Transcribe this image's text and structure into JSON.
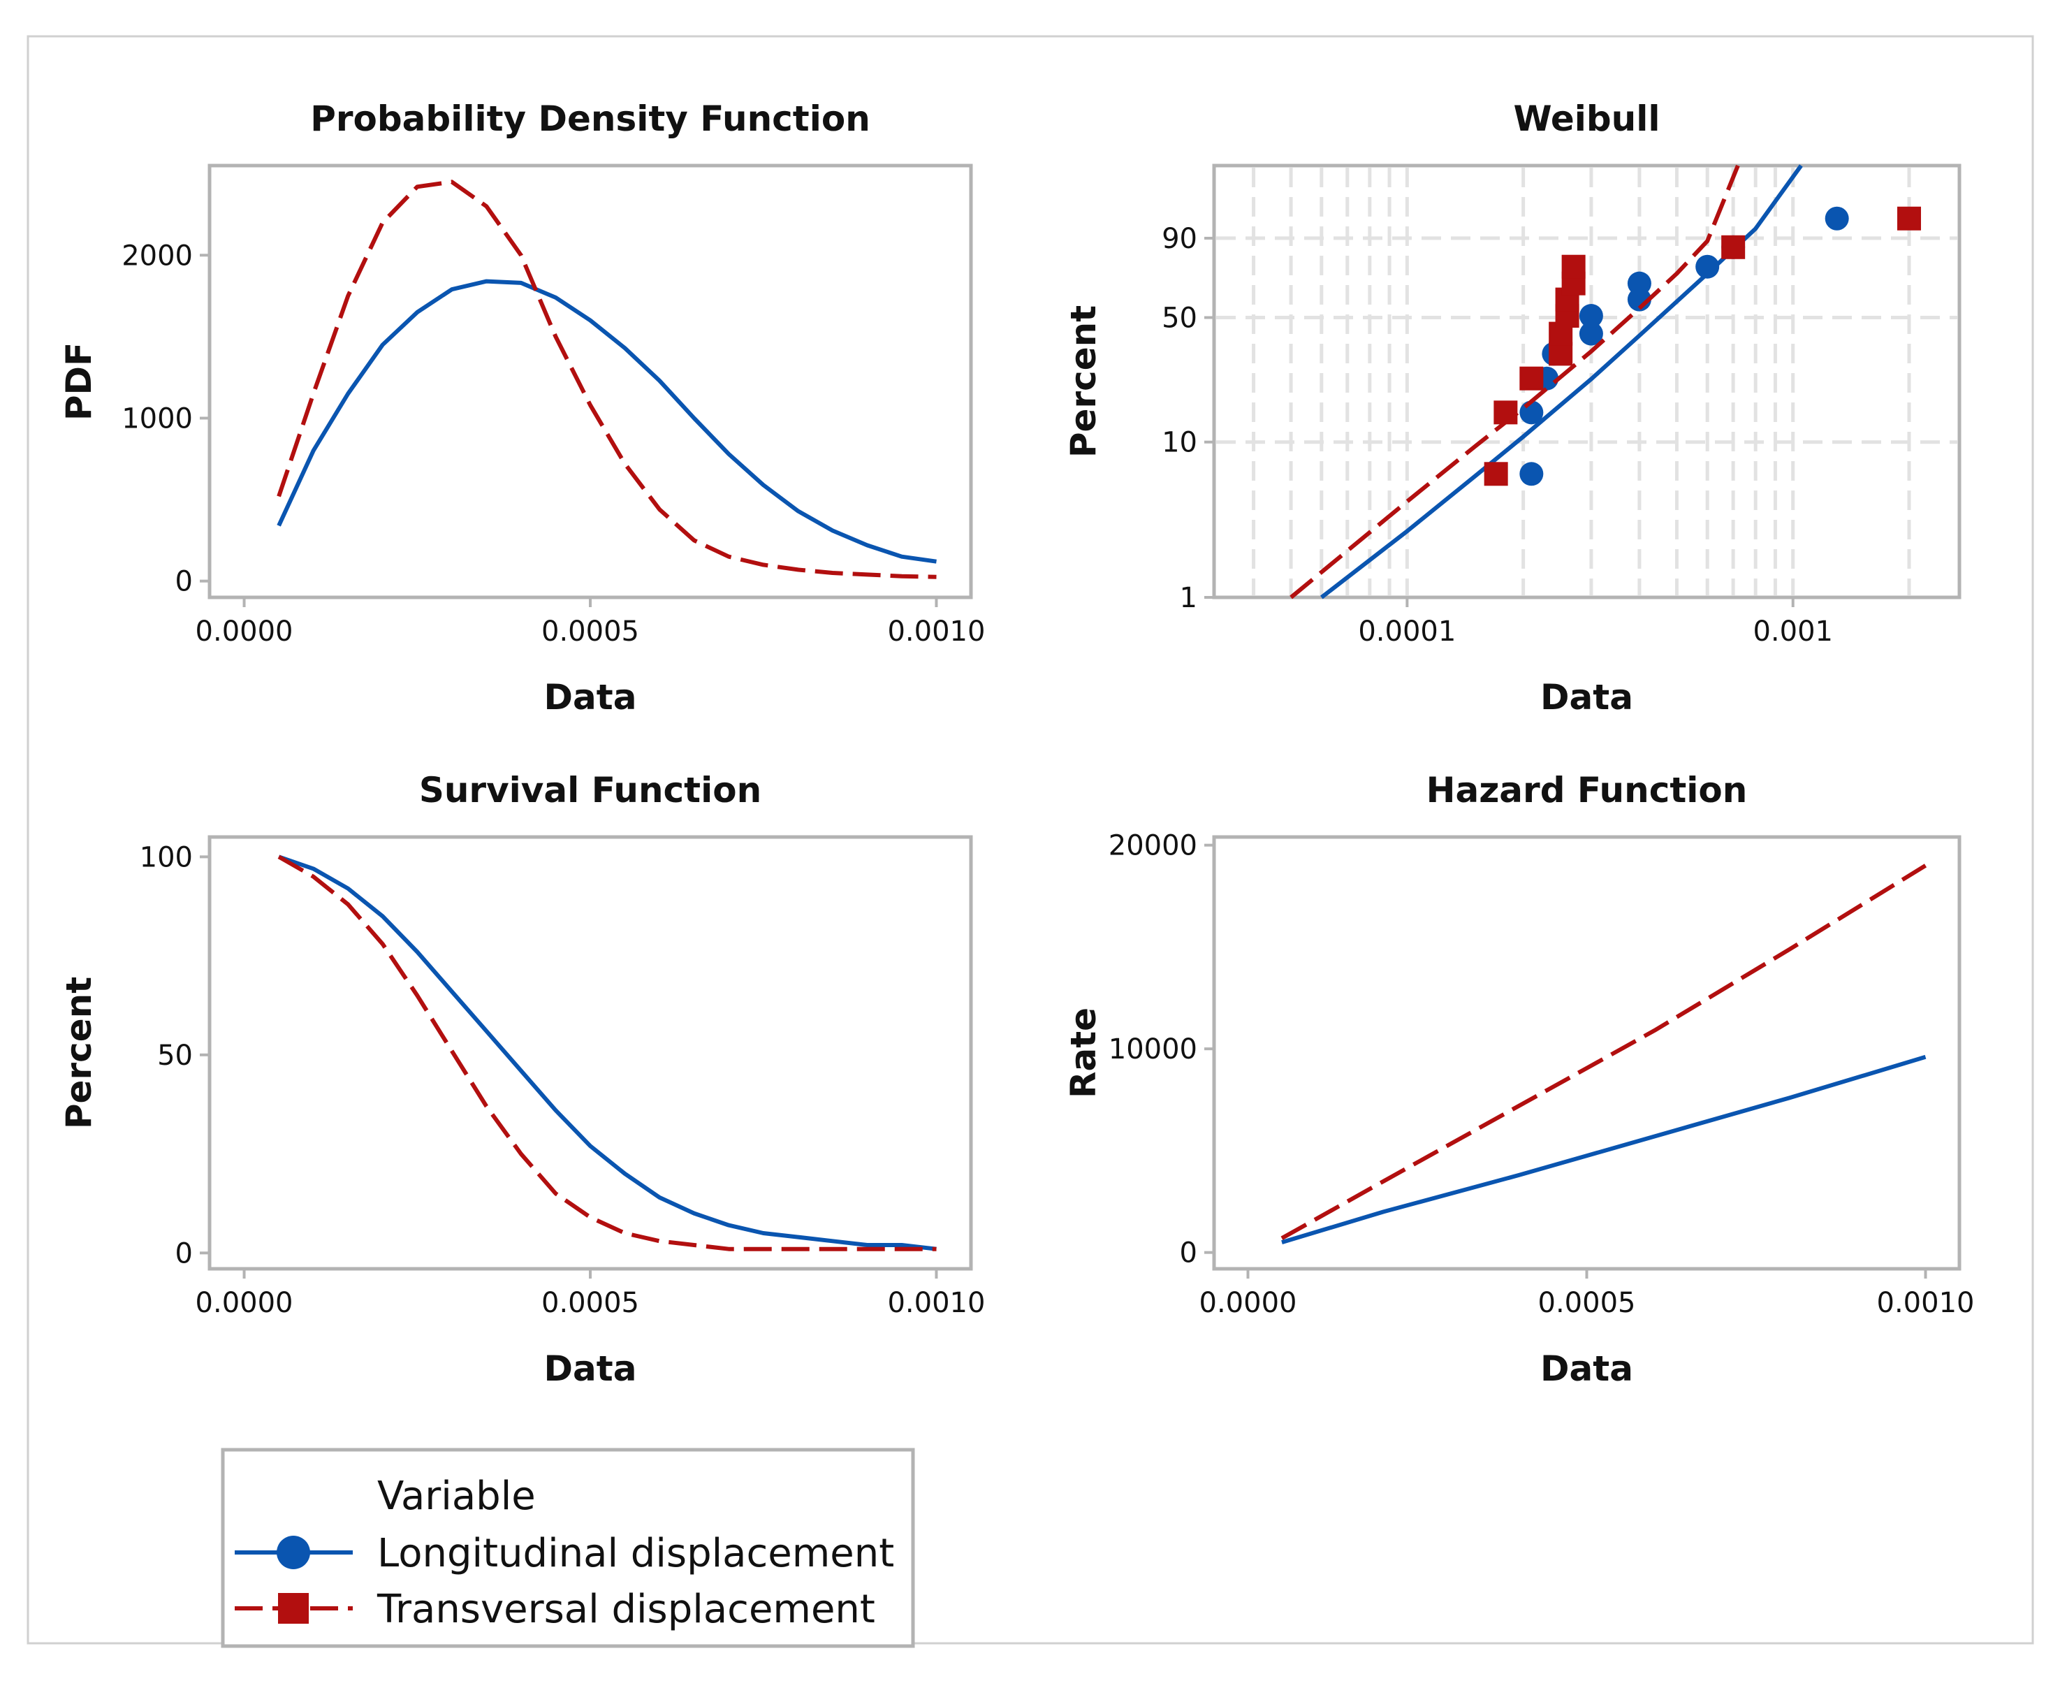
{
  "colors": {
    "longitudinal": "#0a55b0",
    "transversal": "#b20f0f"
  },
  "legend": {
    "title": "Variable",
    "entries": [
      {
        "label": "Longitudinal displacement",
        "marker": "circle",
        "line": "solid",
        "series": "longitudinal"
      },
      {
        "label": "Transversal displacement",
        "marker": "square",
        "line": "dashed",
        "series": "transversal"
      }
    ]
  },
  "chart_data": [
    {
      "id": "pdf",
      "type": "line",
      "title": "Probability Density Function",
      "xlabel": "Data",
      "ylabel": "PDF",
      "xlim": [
        -5e-05,
        0.00105
      ],
      "ylim": [
        -100,
        2550
      ],
      "xticks": [
        0.0,
        0.0005,
        0.001
      ],
      "xtick_labels": [
        "0.0000",
        "0.0005",
        "0.0010"
      ],
      "yticks": [
        0,
        1000,
        2000
      ],
      "ytick_labels": [
        "0",
        "1000",
        "2000"
      ],
      "grid": false,
      "series": [
        {
          "key": "longitudinal",
          "name": "Longitudinal displacement",
          "x": [
            5e-05,
            0.0001,
            0.00015,
            0.0002,
            0.00025,
            0.0003,
            0.00035,
            0.0004,
            0.00045,
            0.0005,
            0.00055,
            0.0006,
            0.00065,
            0.0007,
            0.00075,
            0.0008,
            0.00085,
            0.0009,
            0.00095,
            0.001
          ],
          "y": [
            340,
            800,
            1150,
            1450,
            1650,
            1790,
            1840,
            1830,
            1740,
            1600,
            1430,
            1230,
            1000,
            780,
            590,
            430,
            310,
            220,
            150,
            120
          ]
        },
        {
          "key": "transversal",
          "name": "Transversal displacement",
          "x": [
            5e-05,
            0.0001,
            0.00015,
            0.0002,
            0.00025,
            0.0003,
            0.00035,
            0.0004,
            0.00045,
            0.0005,
            0.00055,
            0.0006,
            0.00065,
            0.0007,
            0.00075,
            0.0008,
            0.00085,
            0.0009,
            0.00095,
            0.001
          ],
          "y": [
            520,
            1150,
            1750,
            2200,
            2420,
            2450,
            2300,
            2000,
            1500,
            1080,
            720,
            440,
            250,
            150,
            100,
            70,
            50,
            40,
            30,
            25
          ]
        }
      ]
    },
    {
      "id": "weibull",
      "type": "scatter",
      "scale": "log-weibull",
      "title": "Weibull",
      "xlabel": "Data",
      "ylabel": "Percent",
      "xlim": [
        3.16e-05,
        0.0027
      ],
      "ylim": [
        1,
        99.9
      ],
      "xticks": [
        0.0001,
        0.001
      ],
      "xtick_labels": [
        "0.0001",
        "0.001"
      ],
      "xgrid": [
        4e-05,
        5e-05,
        6e-05,
        7e-05,
        8e-05,
        9e-05,
        0.0001,
        0.0002,
        0.0003,
        0.0004,
        0.0005,
        0.0006,
        0.0007,
        0.0008,
        0.0009,
        0.001,
        0.002
      ],
      "yticks": [
        1,
        10,
        50,
        90
      ],
      "ytick_labels": [
        "1",
        "10",
        "50",
        "90"
      ],
      "ygrid": [
        10,
        50,
        90
      ],
      "grid": true,
      "series": [
        {
          "key": "longitudinal",
          "name": "Longitudinal displacement",
          "fit_x": [
            6e-05,
            0.0001,
            0.00015,
            0.0002,
            0.0003,
            0.0004,
            0.0006,
            0.0008,
            0.00105
          ],
          "fit_y": [
            1,
            2.7,
            6.1,
            10.8,
            23.9,
            41,
            74,
            93,
            99.9
          ],
          "x": [
            0.00021,
            0.00021,
            0.00023,
            0.00024,
            0.0003,
            0.0003,
            0.0004,
            0.0004,
            0.0006,
            0.0007,
            0.0013
          ],
          "y": [
            6.3,
            15.2,
            24.1,
            33.0,
            41.9,
            50.9,
            59.8,
            68.7,
            77.6,
            86.6,
            95.5
          ]
        },
        {
          "key": "transversal",
          "name": "Transversal displacement",
          "fit_x": [
            5e-05,
            0.0001,
            0.00015,
            0.0002,
            0.0003,
            0.0004,
            0.0005,
            0.0006,
            0.00072
          ],
          "fit_y": [
            1,
            4.2,
            9.4,
            16.1,
            34,
            55,
            74,
            89,
            99.9
          ],
          "x": [
            0.00017,
            0.00018,
            0.00021,
            0.00025,
            0.00025,
            0.00026,
            0.00026,
            0.00027,
            0.00027,
            0.0007,
            0.002
          ],
          "y": [
            6.3,
            15.2,
            24.1,
            33.0,
            41.9,
            50.9,
            59.8,
            68.7,
            77.6,
            86.6,
            95.5
          ]
        }
      ]
    },
    {
      "id": "survival",
      "type": "line",
      "title": "Survival Function",
      "xlabel": "Data",
      "ylabel": "Percent",
      "xlim": [
        -5e-05,
        0.00105
      ],
      "ylim": [
        -4,
        105
      ],
      "xticks": [
        0.0,
        0.0005,
        0.001
      ],
      "xtick_labels": [
        "0.0000",
        "0.0005",
        "0.0010"
      ],
      "yticks": [
        0,
        50,
        100
      ],
      "ytick_labels": [
        "0",
        "50",
        "100"
      ],
      "grid": false,
      "series": [
        {
          "key": "longitudinal",
          "name": "Longitudinal displacement",
          "x": [
            5e-05,
            0.0001,
            0.00015,
            0.0002,
            0.00025,
            0.0003,
            0.00035,
            0.0004,
            0.00045,
            0.0005,
            0.00055,
            0.0006,
            0.00065,
            0.0007,
            0.00075,
            0.0008,
            0.00085,
            0.0009,
            0.00095,
            0.001
          ],
          "y": [
            100,
            97,
            92,
            85,
            76,
            66,
            56,
            46,
            36,
            27,
            20,
            14,
            10,
            7,
            5,
            4,
            3,
            2,
            2,
            1
          ]
        },
        {
          "key": "transversal",
          "name": "Transversal displacement",
          "x": [
            5e-05,
            0.0001,
            0.00015,
            0.0002,
            0.00025,
            0.0003,
            0.00035,
            0.0004,
            0.00045,
            0.0005,
            0.00055,
            0.0006,
            0.00065,
            0.0007,
            0.00075,
            0.0008,
            0.00085,
            0.0009,
            0.00095,
            0.001
          ],
          "y": [
            100,
            95,
            88,
            78,
            65,
            51,
            37,
            25,
            15,
            9,
            5,
            3,
            2,
            1,
            1,
            1,
            1,
            1,
            1,
            1
          ]
        }
      ]
    },
    {
      "id": "hazard",
      "type": "line",
      "title": "Hazard Function",
      "xlabel": "Data",
      "ylabel": "Rate",
      "xlim": [
        -5e-05,
        0.00105
      ],
      "ylim": [
        -800,
        20400
      ],
      "xticks": [
        0.0,
        0.0005,
        0.001
      ],
      "xtick_labels": [
        "0.0000",
        "0.0005",
        "0.0010"
      ],
      "yticks": [
        0,
        10000,
        20000
      ],
      "ytick_labels": [
        "0",
        "10000",
        "20000"
      ],
      "grid": false,
      "series": [
        {
          "key": "longitudinal",
          "name": "Longitudinal displacement",
          "x": [
            5e-05,
            0.0002,
            0.0004,
            0.0006,
            0.0008,
            0.001
          ],
          "y": [
            500,
            2000,
            3800,
            5700,
            7600,
            9600
          ]
        },
        {
          "key": "transversal",
          "name": "Transversal displacement",
          "x": [
            5e-05,
            0.0002,
            0.0004,
            0.0006,
            0.0008,
            0.001
          ],
          "y": [
            700,
            3500,
            7200,
            10900,
            14900,
            19000
          ]
        }
      ]
    }
  ]
}
